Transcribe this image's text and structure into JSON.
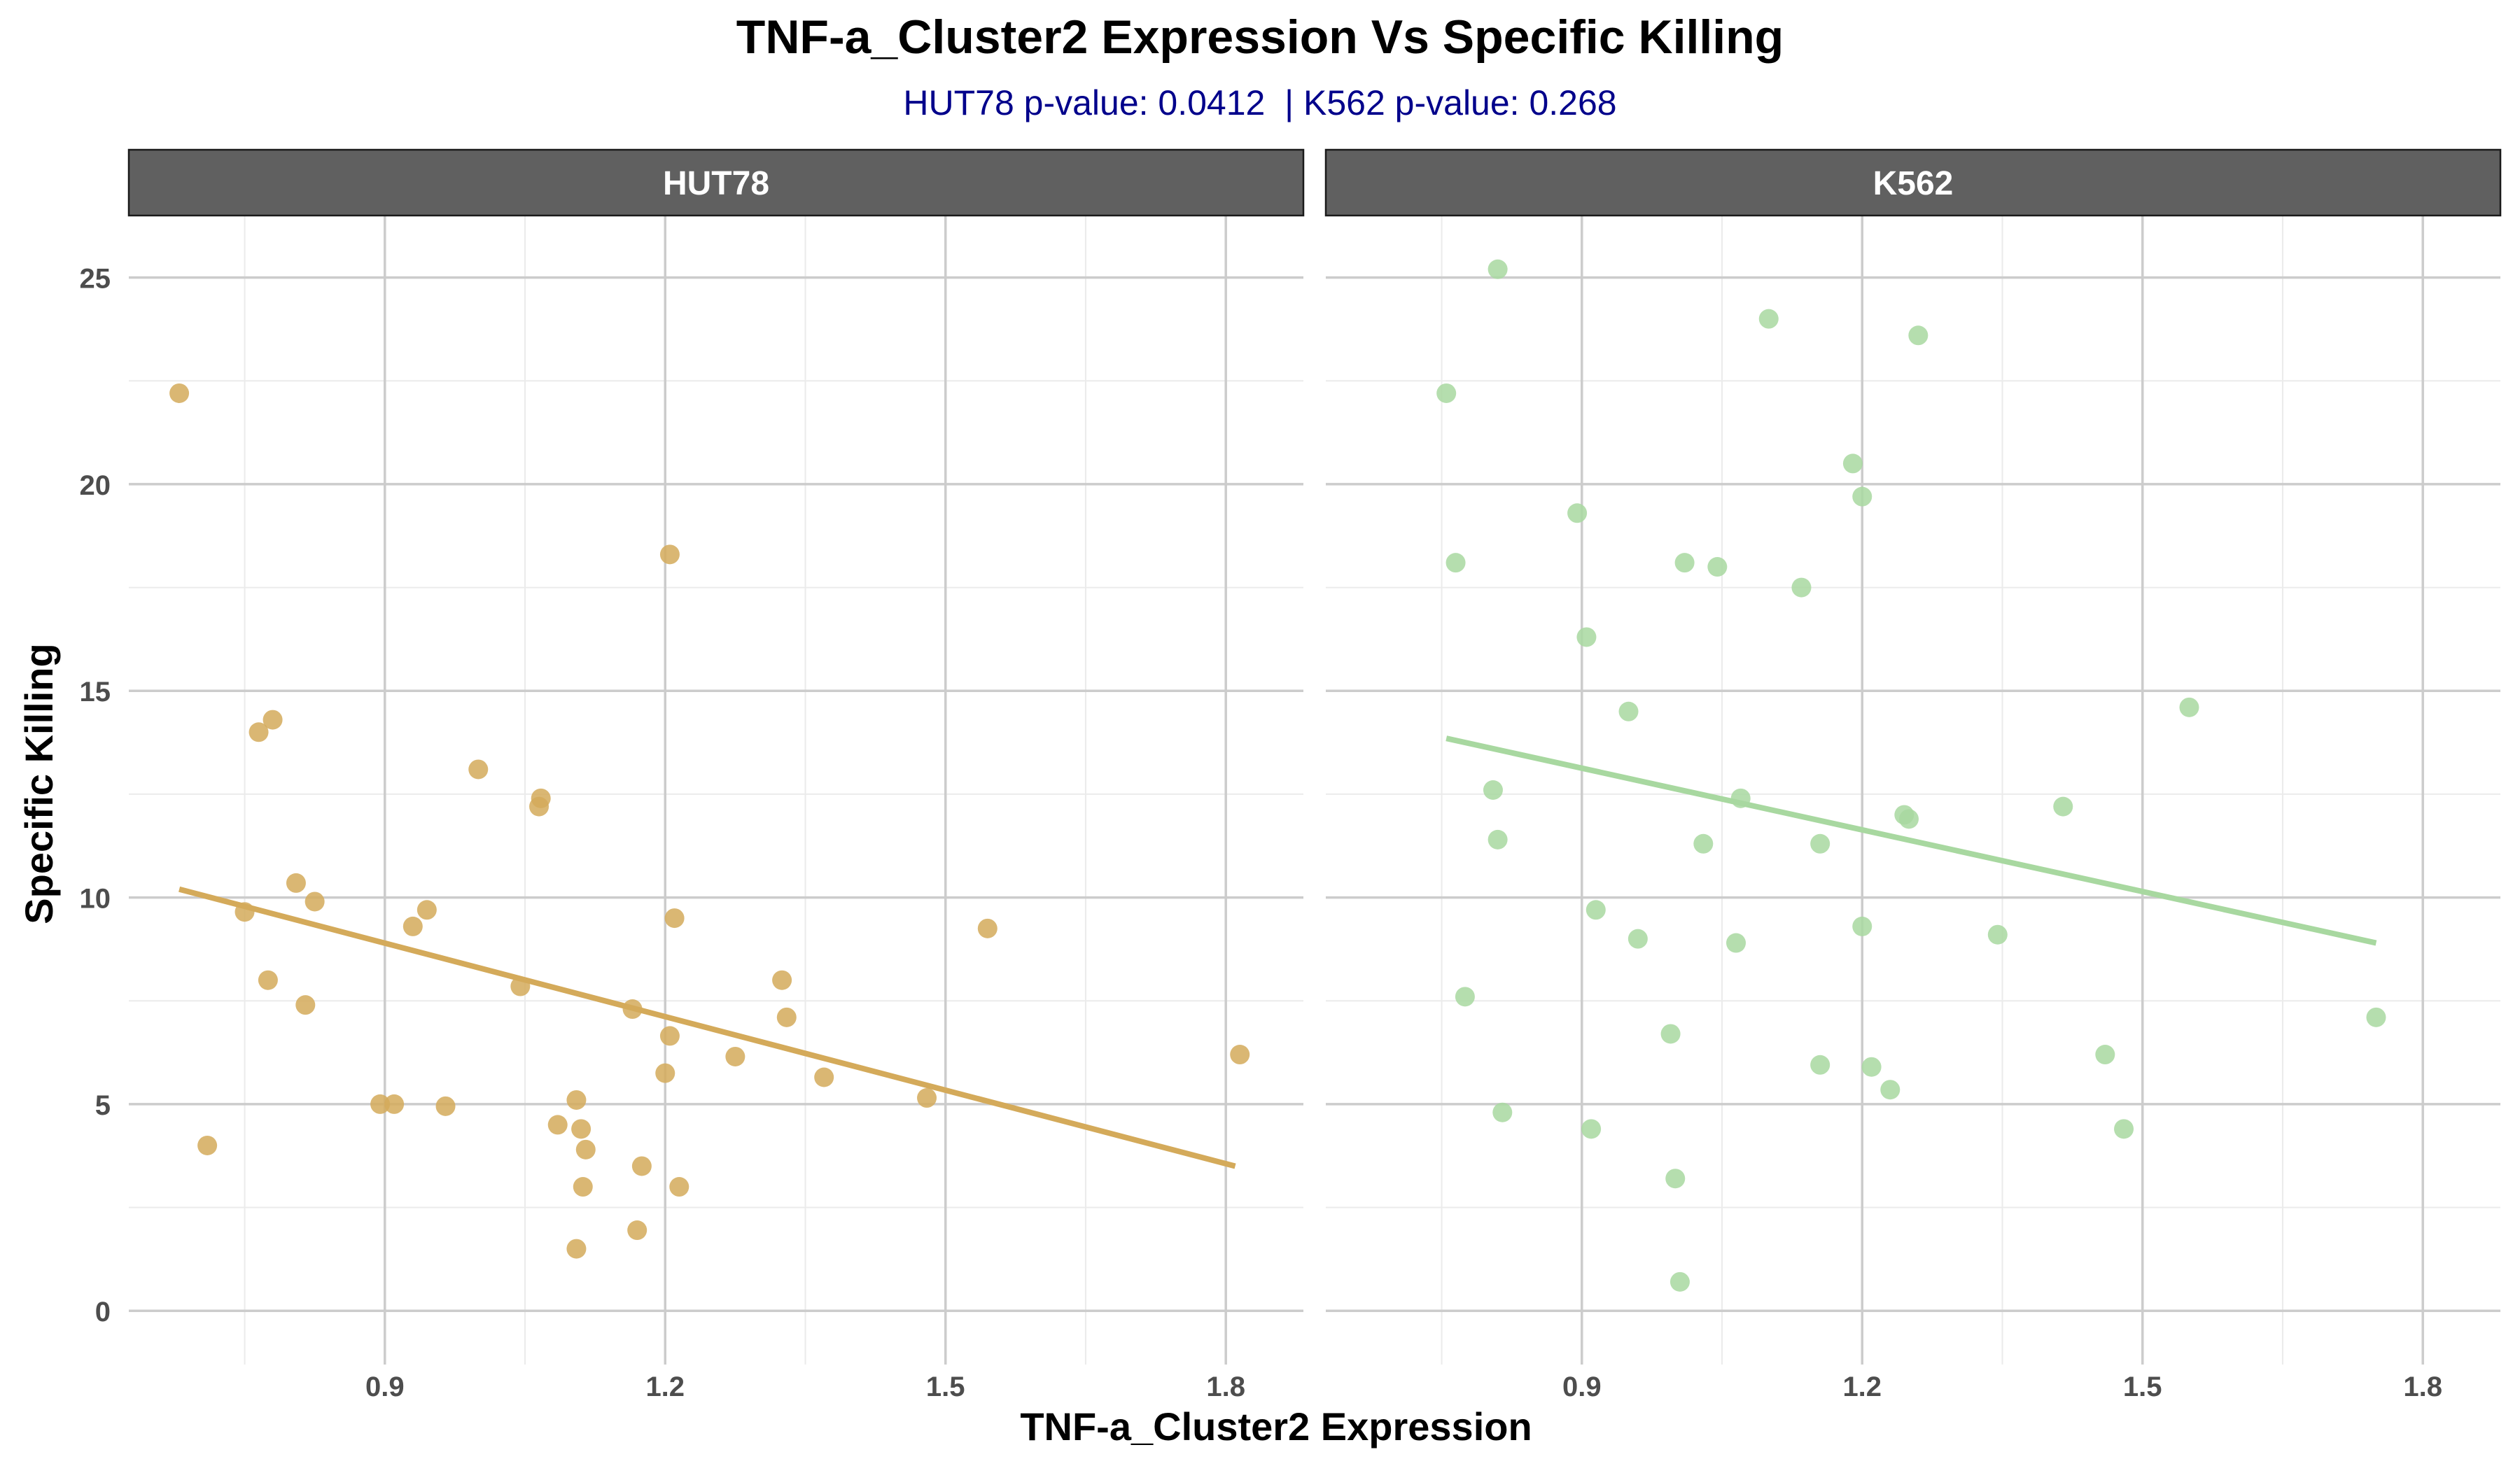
{
  "chart_data": {
    "type": "scatter",
    "title": "TNF-a_Cluster2 Expression Vs Specific Killing",
    "subtitle": "HUT78 p-value: 0.0412  | K562 p-value: 0.268",
    "xlabel": "TNF-a_Cluster2 Expression",
    "ylabel": "Specific Killing",
    "xlim": [
      0.626,
      1.883
    ],
    "ylim": [
      -1.3,
      26.5
    ],
    "x_ticks": [
      0.9,
      1.2,
      1.5,
      1.8
    ],
    "x_tick_labels": [
      "0.9",
      "1.2",
      "1.5",
      "1.8"
    ],
    "y_ticks": [
      0,
      5,
      10,
      15,
      20,
      25
    ],
    "y_tick_labels": [
      "0",
      "5",
      "10",
      "15",
      "20",
      "25"
    ],
    "grid": true,
    "panels": [
      {
        "label": "HUT78",
        "color": "#D4AA5A",
        "trend": {
          "x": [
            0.68,
            1.81
          ],
          "y": [
            10.2,
            3.5
          ]
        },
        "points": [
          [
            0.68,
            22.2
          ],
          [
            0.71,
            4.0
          ],
          [
            0.75,
            9.65
          ],
          [
            0.765,
            14.0
          ],
          [
            0.775,
            8.0
          ],
          [
            0.78,
            14.3
          ],
          [
            0.805,
            10.35
          ],
          [
            0.815,
            7.4
          ],
          [
            0.825,
            9.9
          ],
          [
            0.895,
            5.0
          ],
          [
            0.91,
            5.0
          ],
          [
            0.93,
            9.3
          ],
          [
            0.945,
            9.7
          ],
          [
            0.965,
            4.95
          ],
          [
            1.0,
            13.1
          ],
          [
            1.045,
            7.85
          ],
          [
            1.065,
            12.2
          ],
          [
            1.067,
            12.4
          ],
          [
            1.085,
            4.5
          ],
          [
            1.105,
            5.1
          ],
          [
            1.105,
            1.5
          ],
          [
            1.11,
            4.4
          ],
          [
            1.112,
            3.0
          ],
          [
            1.115,
            3.9
          ],
          [
            1.165,
            7.3
          ],
          [
            1.17,
            1.95
          ],
          [
            1.175,
            3.5
          ],
          [
            1.2,
            5.75
          ],
          [
            1.205,
            6.65
          ],
          [
            1.205,
            18.3
          ],
          [
            1.21,
            9.5
          ],
          [
            1.215,
            3.0
          ],
          [
            1.275,
            6.15
          ],
          [
            1.325,
            8.0
          ],
          [
            1.33,
            7.1
          ],
          [
            1.37,
            5.65
          ],
          [
            1.48,
            5.15
          ],
          [
            1.545,
            9.25
          ],
          [
            1.815,
            6.2
          ]
        ]
      },
      {
        "label": "K562",
        "color": "#A8D8A0",
        "trend": {
          "x": [
            0.755,
            1.75
          ],
          "y": [
            13.85,
            8.9
          ]
        },
        "points": [
          [
            0.755,
            22.2
          ],
          [
            0.765,
            18.1
          ],
          [
            0.775,
            7.6
          ],
          [
            0.805,
            12.6
          ],
          [
            0.81,
            11.4
          ],
          [
            0.815,
            4.8
          ],
          [
            0.81,
            25.2
          ],
          [
            0.895,
            19.3
          ],
          [
            0.905,
            16.3
          ],
          [
            0.91,
            4.4
          ],
          [
            0.915,
            9.7
          ],
          [
            0.95,
            14.5
          ],
          [
            0.96,
            9.0
          ],
          [
            0.995,
            6.7
          ],
          [
            1.0,
            3.2
          ],
          [
            1.005,
            0.7
          ],
          [
            1.01,
            18.1
          ],
          [
            1.03,
            11.3
          ],
          [
            1.045,
            18.0
          ],
          [
            1.065,
            8.9
          ],
          [
            1.07,
            12.4
          ],
          [
            1.1,
            24.0
          ],
          [
            1.135,
            17.5
          ],
          [
            1.155,
            11.3
          ],
          [
            1.155,
            5.95
          ],
          [
            1.19,
            20.5
          ],
          [
            1.2,
            19.7
          ],
          [
            1.2,
            9.3
          ],
          [
            1.21,
            5.9
          ],
          [
            1.23,
            5.35
          ],
          [
            1.245,
            12.0
          ],
          [
            1.25,
            11.9
          ],
          [
            1.26,
            23.6
          ],
          [
            1.345,
            9.1
          ],
          [
            1.415,
            12.2
          ],
          [
            1.46,
            6.2
          ],
          [
            1.48,
            4.4
          ],
          [
            1.55,
            14.6
          ],
          [
            1.75,
            7.1
          ]
        ]
      }
    ]
  },
  "colors": {
    "strip_fill": "#606060",
    "strip_text": "#ffffff",
    "subtitle": "#00008B",
    "grid_major": "#CCCCCC",
    "grid_minor": "#EBEBEB"
  }
}
